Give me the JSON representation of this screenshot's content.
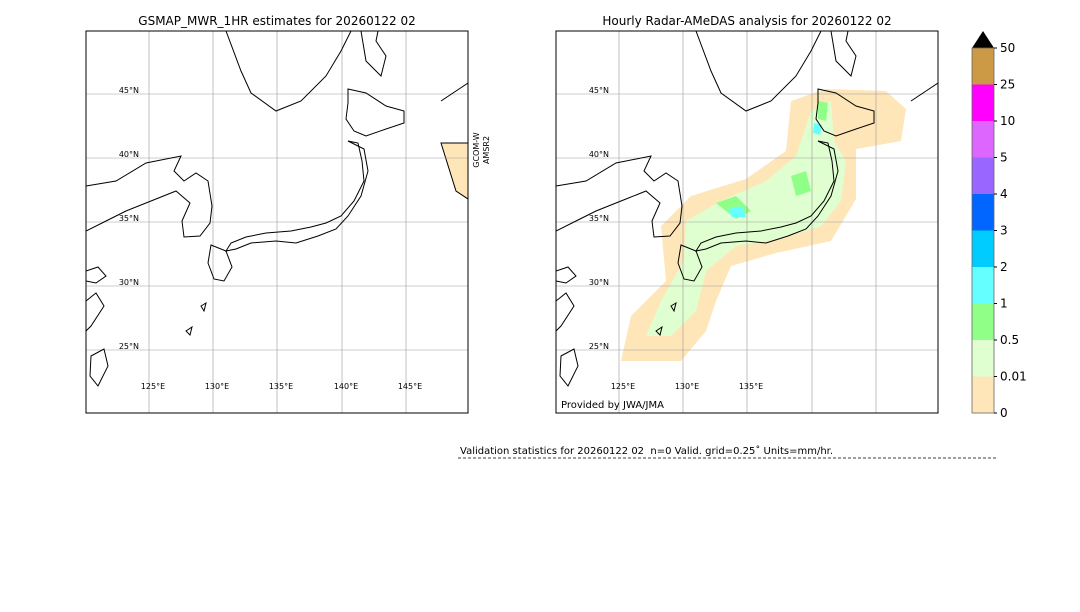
{
  "panels": [
    {
      "title": "GSMAP_MWR_1HR estimates for 20260122 02",
      "lat_labels": [
        "45°N",
        "40°N",
        "35°N",
        "30°N",
        "25°N"
      ],
      "lon_labels": [
        "125°E",
        "130°E",
        "135°E",
        "140°E",
        "145°E"
      ],
      "sensor": [
        "GCOM-W",
        "AMSR2"
      ]
    },
    {
      "title": "Hourly Radar-AMeDAS analysis for 20260122 02",
      "lat_labels": [
        "45°N",
        "40°N",
        "35°N",
        "30°N",
        "25°N"
      ],
      "lon_labels": [
        "125°E",
        "130°E",
        "135°E"
      ],
      "credit": "Provided by JWA/JMA"
    }
  ],
  "colorbar": {
    "ticks": [
      0,
      0.01,
      0.5,
      1,
      2,
      3,
      4,
      5,
      10,
      25,
      50
    ],
    "colors": [
      "#fee6b9",
      "#e0ffd0",
      "#90ff88",
      "#66ffff",
      "#00ccff",
      "#0066ff",
      "#9966ff",
      "#dd66ff",
      "#ff00ff",
      "#cc9944"
    ]
  },
  "validation": "Validation statistics for 20260122 02  n=0 Valid. grid=0.25˚ Units=mm/hr."
}
